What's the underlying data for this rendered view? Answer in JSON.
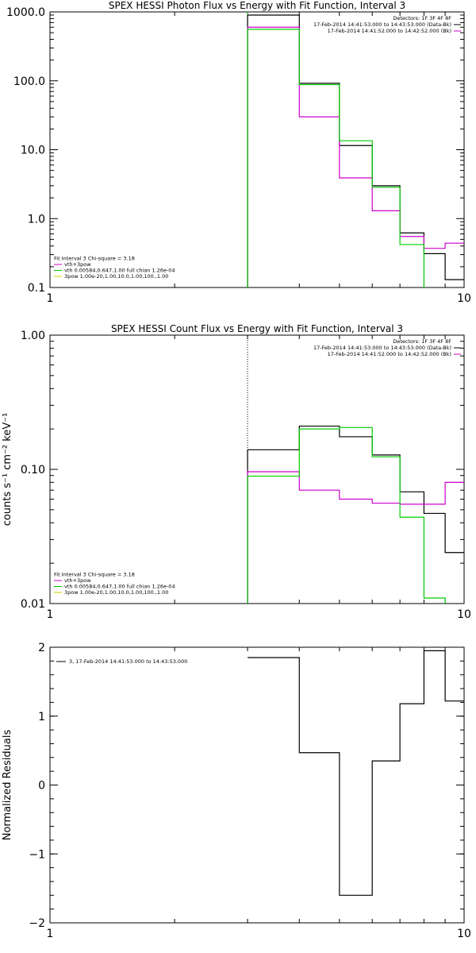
{
  "chart_data": [
    {
      "type": "line",
      "title": "SPEX HESSI Photon Flux vs Energy with Fit Function, Interval 3",
      "xlabel": "",
      "ylabel": "",
      "xscale": "log",
      "yscale": "log",
      "xlim": [
        1,
        10
      ],
      "ylim": [
        0.1,
        1000
      ],
      "xticks": [
        {
          "v": 1,
          "label": "1"
        },
        {
          "v": 10,
          "label": "10"
        }
      ],
      "yticks": [
        {
          "v": 0.1,
          "label": "0.1"
        },
        {
          "v": 1,
          "label": "1.0"
        },
        {
          "v": 10,
          "label": "10.0"
        },
        {
          "v": 100,
          "label": "100.0"
        },
        {
          "v": 1000,
          "label": "1000.0"
        }
      ],
      "legend_topright": [
        "Detectors: 1F 3F 4F 8F",
        "17-Feb-2014 14:41:53.000 to 14:43:53.000 (Data-Bk)",
        "17-Feb-2014 14:41:52.000 to 14:42:52.000 (Bk)"
      ],
      "legend_topright_colors": [
        "",
        "#000000",
        "#cc00cc"
      ],
      "legend_bottomleft": [
        "Fit Interval 3   Chi-square = 3.18",
        "vth+3pow",
        "vth 0.00584,0.647,1.00  full chian 1.26e-04",
        "3pow 1.00e-20,1.00,10.0,1.00,100.,1.00"
      ],
      "legend_bottomleft_colors": [
        "",
        "#cc00cc",
        "#00cc00",
        "#cccc00"
      ],
      "series": [
        {
          "name": "Data-Bk",
          "color": "#000000",
          "edges": [
            3,
            4,
            5,
            6,
            7,
            8,
            9,
            10
          ],
          "values": [
            900,
            92,
            11.5,
            3.0,
            0.62,
            0.31,
            0.13
          ]
        },
        {
          "name": "Bk",
          "color": "#cc00cc",
          "edges": [
            3,
            4,
            5,
            6,
            7,
            8,
            9,
            10
          ],
          "values": [
            600,
            30,
            3.9,
            1.3,
            0.55,
            0.37,
            0.44
          ]
        },
        {
          "name": "vth+3pow",
          "color": "#00cc00",
          "edges": [
            3,
            4,
            5,
            6,
            7,
            8
          ],
          "values": [
            560,
            88,
            13.5,
            2.85,
            0.42
          ]
        }
      ],
      "vline": {
        "x": 3,
        "color": "#00cc00"
      }
    },
    {
      "type": "line",
      "title": "SPEX HESSI Count Flux vs Energy with Fit Function, Interval 3",
      "xlabel": "",
      "ylabel": "counts s⁻¹ cm⁻² keV⁻¹",
      "xscale": "log",
      "yscale": "log",
      "xlim": [
        1,
        10
      ],
      "ylim": [
        0.01,
        1
      ],
      "xticks": [
        {
          "v": 1,
          "label": "1"
        },
        {
          "v": 10,
          "label": "10"
        }
      ],
      "yticks": [
        {
          "v": 0.01,
          "label": "0.01"
        },
        {
          "v": 0.1,
          "label": "0.10"
        },
        {
          "v": 1,
          "label": "1.00"
        }
      ],
      "legend_topright": [
        "Detectors: 1F 3F 4F 8F",
        "17-Feb-2014 14:41:53.000 to 14:43:53.000 (Data-Bk)",
        "17-Feb-2014 14:41:52.000 to 14:42:52.000 (Bk)"
      ],
      "legend_topright_colors": [
        "",
        "#000000",
        "#cc00cc"
      ],
      "legend_bottomleft": [
        "Fit Interval 3   Chi-square = 3.18",
        "vth+3pow",
        "vth 0.00584,0.647,1.00  full chian 1.26e-04",
        "3pow 1.00e-20,1.00,10.0,1.00,100.,1.00"
      ],
      "legend_bottomleft_colors": [
        "",
        "#cc00cc",
        "#00cc00",
        "#cccc00"
      ],
      "series": [
        {
          "name": "Data-Bk",
          "color": "#000000",
          "edges": [
            3,
            4,
            5,
            6,
            7,
            8,
            9,
            10
          ],
          "values": [
            0.14,
            0.21,
            0.175,
            0.128,
            0.068,
            0.047,
            0.024
          ]
        },
        {
          "name": "Bk",
          "color": "#cc00cc",
          "edges": [
            3,
            4,
            5,
            6,
            7,
            8,
            9,
            10
          ],
          "values": [
            0.096,
            0.07,
            0.06,
            0.056,
            0.055,
            0.055,
            0.08
          ]
        },
        {
          "name": "vth+3pow",
          "color": "#00cc00",
          "edges": [
            3,
            4,
            5,
            6,
            7,
            8,
            9
          ],
          "values": [
            0.089,
            0.2,
            0.205,
            0.124,
            0.044,
            0.011
          ]
        }
      ],
      "vline": {
        "x": 3,
        "color": "#000000",
        "dotted": true
      }
    },
    {
      "type": "line",
      "title": "",
      "xlabel": "",
      "ylabel": "Normalized Residuals",
      "xscale": "log",
      "yscale": "linear",
      "xlim": [
        1,
        10
      ],
      "ylim": [
        -2,
        2
      ],
      "xticks": [
        {
          "v": 1,
          "label": "1"
        },
        {
          "v": 10,
          "label": "10"
        }
      ],
      "yticks": [
        {
          "v": -2,
          "label": "−2"
        },
        {
          "v": -1,
          "label": "−1"
        },
        {
          "v": 0,
          "label": "0"
        },
        {
          "v": 1,
          "label": "1"
        },
        {
          "v": 2,
          "label": "2"
        }
      ],
      "legend_topleft": [
        "3, 17-Feb-2014 14:41:53.000 to 14:43:53.000"
      ],
      "series": [
        {
          "name": "3, 17-Feb-2014 14:41:53.000 to 14:43:53.000",
          "color": "#000000",
          "edges": [
            3,
            4,
            5,
            6,
            7,
            8,
            9,
            10
          ],
          "values": [
            1.85,
            0.47,
            -1.6,
            0.35,
            1.18,
            1.95,
            1.22
          ]
        }
      ]
    }
  ]
}
